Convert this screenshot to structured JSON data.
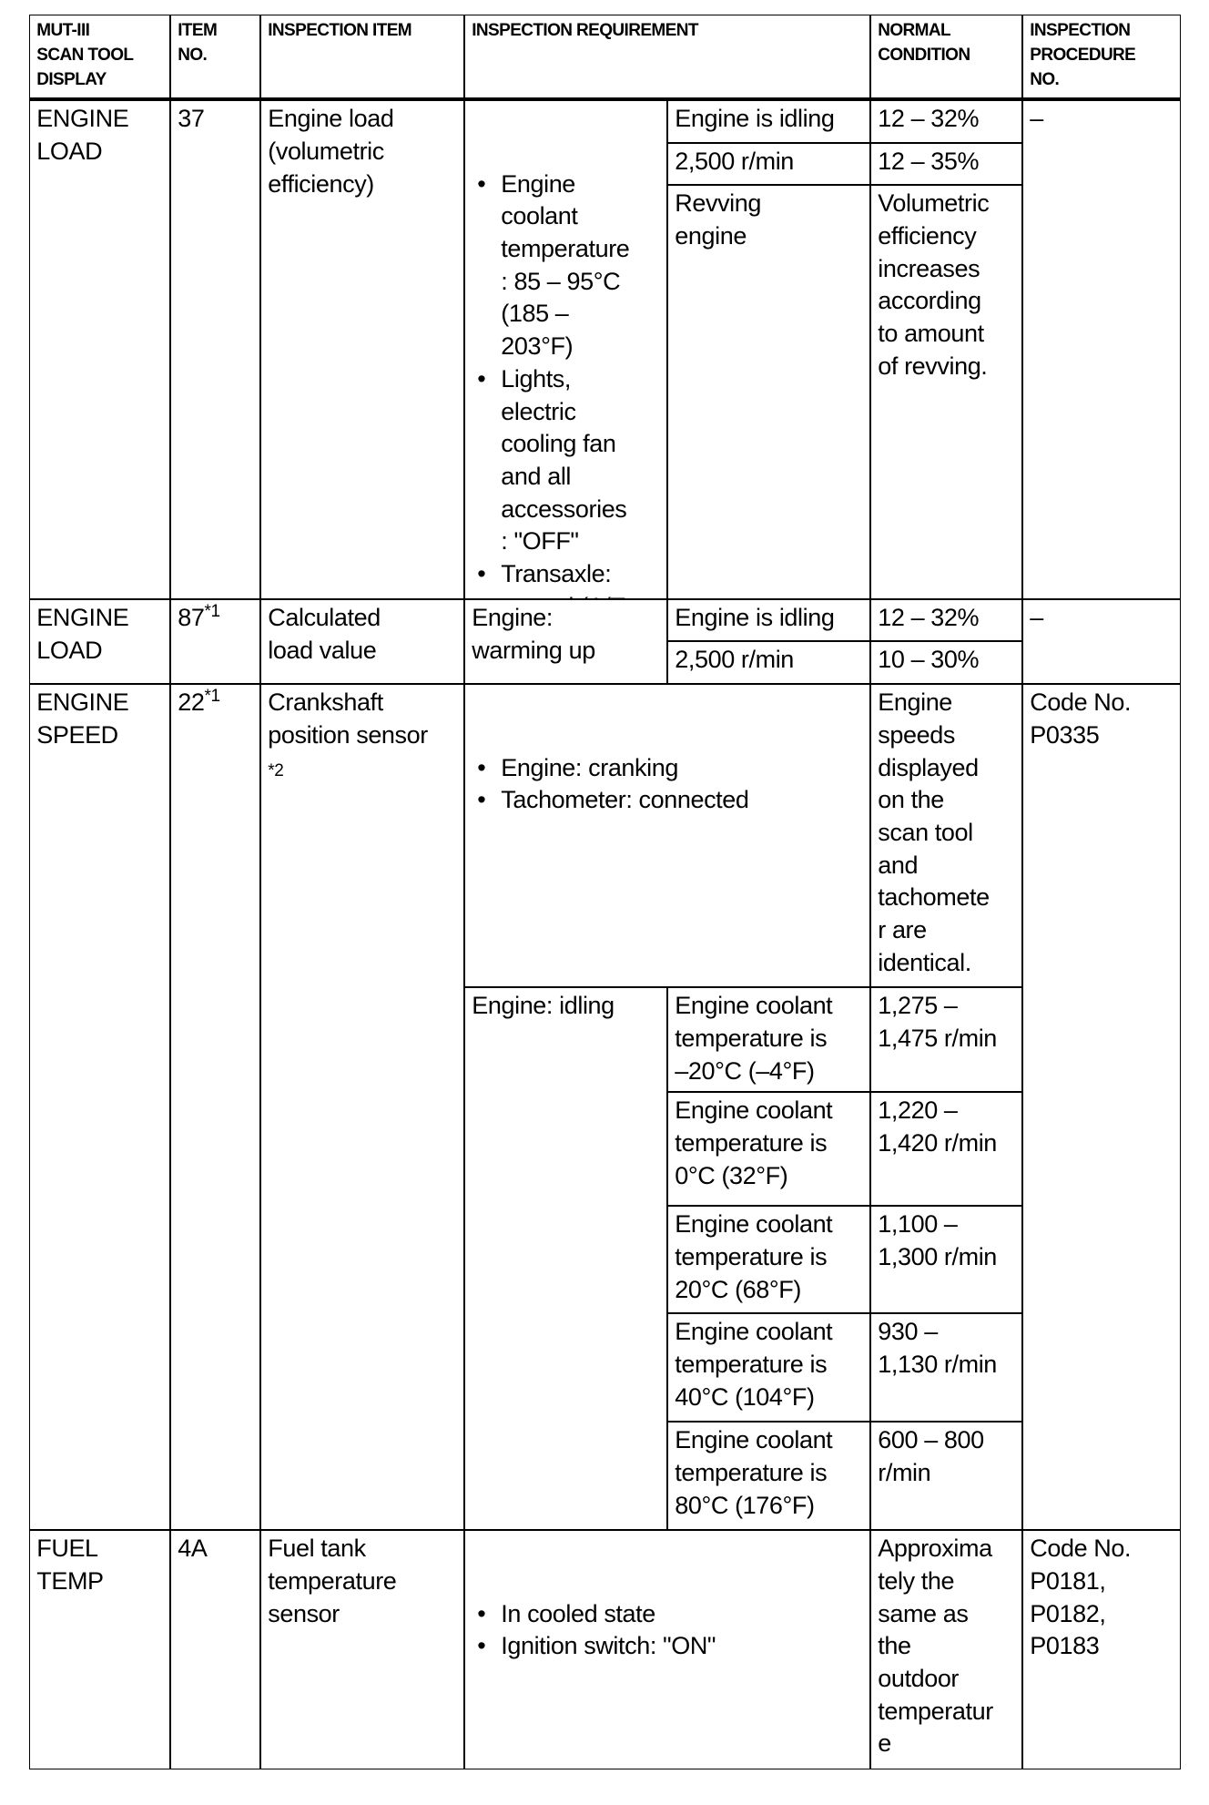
{
  "header": {
    "display": "MUT-III\nSCAN TOOL\nDISPLAY",
    "item_no": "ITEM\nNO.",
    "item": "INSPECTION ITEM",
    "requirement": "INSPECTION REQUIREMENT",
    "normal": "NORMAL\nCONDITION",
    "procedure": "INSPECTION\nPROCEDURE\nNO."
  },
  "rows": [
    {
      "display": "ENGINE\nLOAD",
      "item_no": "37",
      "item": "Engine load\n(volumetric\nefficiency)",
      "requirement_bullets": [
        "Engine\ncoolant\ntemperature\n: 85 – 95°C\n(185 –\n203°F)",
        "Lights,\nelectric\ncooling fan\nand all\naccessories\n: \"OFF\"",
        "Transaxle:\nneutral (A/T:\n\"P\" range)"
      ],
      "conditions": [
        {
          "condition": "Engine is idling",
          "normal": "12 – 32%"
        },
        {
          "condition": "2,500 r/min",
          "normal": "12 – 35%"
        },
        {
          "condition": "Revving\nengine",
          "normal": "Volumetric\nefficiency\nincreases\naccording\nto amount\nof revving."
        }
      ],
      "procedure": "–"
    },
    {
      "display": "ENGINE\nLOAD",
      "item_no": "87",
      "item_no_note": "*1",
      "item": "Calculated\nload value",
      "requirement": "Engine:\nwarming up",
      "conditions": [
        {
          "condition": "Engine is idling",
          "normal": "12 – 32%"
        },
        {
          "condition": "2,500 r/min",
          "normal": "10 – 30%"
        }
      ],
      "procedure": "–"
    },
    {
      "display": "ENGINE\nSPEED",
      "item_no": "22",
      "item_no_note": "*1",
      "item": "Crankshaft\nposition sensor",
      "item_note": "*2",
      "requirement_bullets": [
        "Engine: cranking",
        "Tachometer: connected"
      ],
      "normal": "Engine\nspeeds\ndisplayed\non the\nscan tool\nand\ntachomete\nr are\nidentical.",
      "idle_requirement": "Engine: idling",
      "conditions": [
        {
          "condition": "Engine coolant\ntemperature is\n–20°C (–4°F)",
          "normal": "1,275 –\n1,475 r/min"
        },
        {
          "condition": "Engine coolant\ntemperature is\n0°C (32°F)",
          "normal": "1,220 –\n1,420 r/min"
        },
        {
          "condition": "Engine coolant\ntemperature is\n20°C (68°F)",
          "normal": "1,100 –\n1,300 r/min"
        },
        {
          "condition": "Engine coolant\ntemperature is\n40°C (104°F)",
          "normal": "930 –\n1,130 r/min"
        },
        {
          "condition": "Engine coolant\ntemperature is\n80°C (176°F)",
          "normal": "600 – 800\nr/min"
        }
      ],
      "procedure": "Code No.\nP0335"
    },
    {
      "display": "FUEL\nTEMP",
      "item_no": "4A",
      "item": "Fuel tank\ntemperature\nsensor",
      "requirement_bullets": [
        "In cooled state",
        "Ignition switch: \"ON\""
      ],
      "normal": "Approxima\ntely the\nsame as\nthe\noutdoor\ntemperatur\ne",
      "procedure": "Code No.\nP0181,\nP0182,\nP0183"
    }
  ]
}
